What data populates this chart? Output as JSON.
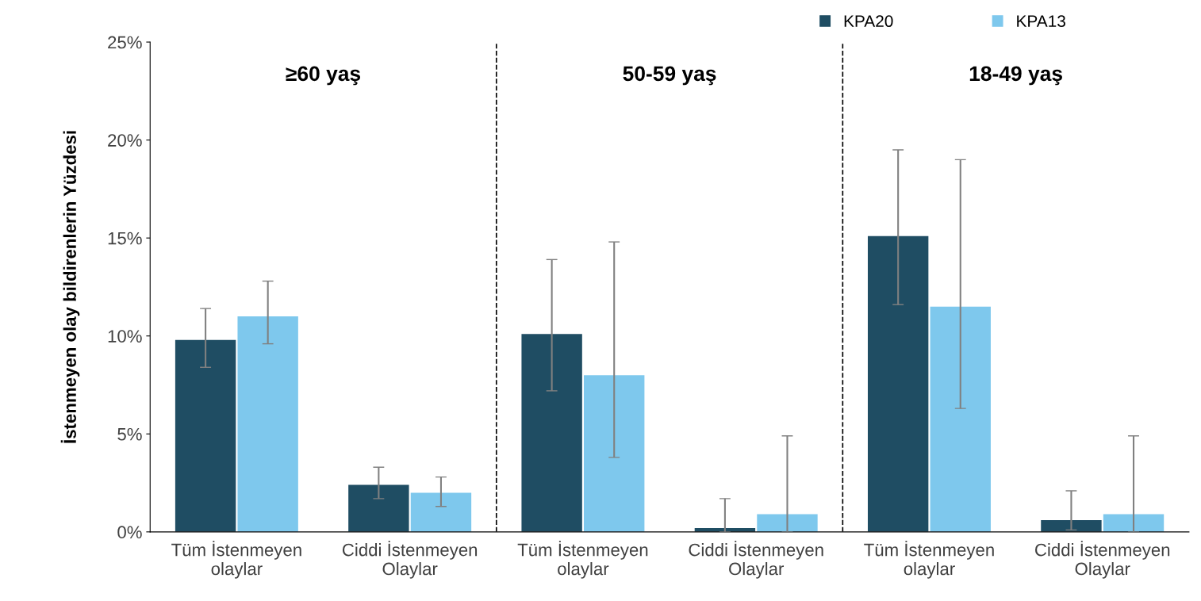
{
  "chart_data": {
    "type": "bar",
    "ylabel": "İstenmeyen olay bildirenlerin Yüzdesi",
    "categories": [
      "Tüm İstenmeyen\nolaylar",
      "Ciddi İstenmeyen\nOlaylar",
      "Tüm İstenmeyen\nolaylar",
      "Ciddi İstenmeyen\nOlaylar",
      "Tüm İstenmeyen\nolaylar",
      "Ciddi İstenmeyen\nOlaylar"
    ],
    "series": [
      {
        "name": "KPA20",
        "color": "#1f4d63",
        "values": [
          9.8,
          2.4,
          10.1,
          0.2,
          15.1,
          0.6
        ],
        "errors": [
          [
            8.4,
            11.4
          ],
          [
            1.7,
            3.3
          ],
          [
            7.2,
            13.9
          ],
          [
            0,
            1.7
          ],
          [
            11.6,
            19.5
          ],
          [
            0.1,
            2.1
          ]
        ]
      },
      {
        "name": "KPA13",
        "color": "#7ec8ed",
        "values": [
          11.0,
          2.0,
          8.0,
          0.9,
          11.5,
          0.9
        ],
        "errors": [
          [
            9.6,
            12.8
          ],
          [
            1.3,
            2.8
          ],
          [
            3.8,
            14.8
          ],
          [
            0,
            4.9
          ],
          [
            6.3,
            19.0
          ],
          [
            0,
            4.9
          ]
        ]
      }
    ],
    "annotations": [
      "≥60 yaş",
      "50-59 yaş",
      "18-49 yaş"
    ],
    "ylim": [
      0,
      25
    ],
    "yticks": [
      {
        "value": 0,
        "label": "0%"
      },
      {
        "value": 5,
        "label": "5%"
      },
      {
        "value": 10,
        "label": "10%"
      },
      {
        "value": 15,
        "label": "15%"
      },
      {
        "value": 20,
        "label": "20%"
      },
      {
        "value": 25,
        "label": "25%"
      }
    ],
    "grid": false,
    "legend": "top right"
  }
}
